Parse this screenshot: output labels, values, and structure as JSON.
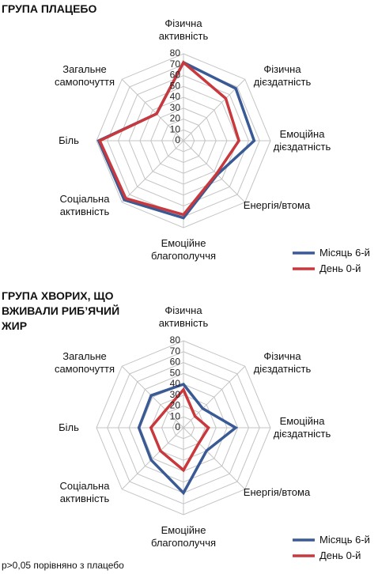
{
  "chart_data": [
    {
      "type": "radar",
      "title": "ГРУПА ПЛАЦЕБО",
      "categories": [
        "Фізична активність",
        "Фізична дієздатність",
        "Емоційна дієздатність",
        "Енергія/втома",
        "Емоційне благополуччя",
        "Соціальна активність",
        "Біль",
        "Загальне самопочуття"
      ],
      "series": [
        {
          "name": "Місяць 6-й",
          "color": "#3a5a96",
          "values": [
            72,
            68,
            65,
            44,
            71,
            77,
            78,
            35
          ]
        },
        {
          "name": "День 0-й",
          "color": "#c8383c",
          "values": [
            72,
            55,
            51,
            43,
            68,
            75,
            77,
            35
          ]
        }
      ],
      "rlim": [
        0,
        80
      ],
      "rticks": [
        0,
        10,
        20,
        30,
        40,
        50,
        60,
        70,
        80
      ],
      "grid": true,
      "legend": "bottom-right"
    },
    {
      "type": "radar",
      "title": "ГРУПА ХВОРИХ, ЩО ВЖИВАЛИ РИБ’ЯЧИЙ ЖИР",
      "categories": [
        "Фізична активність",
        "Фізична дієздатність",
        "Емоційна дієздатність",
        "Енергія/втома",
        "Емоційне благополуччя",
        "Соціальна активність",
        "Біль",
        "Загальне самопочуття"
      ],
      "series": [
        {
          "name": "Місяць 6-й",
          "color": "#3a5a96",
          "values": [
            40,
            25,
            48,
            30,
            60,
            42,
            41,
            42
          ]
        },
        {
          "name": "День 0-й",
          "color": "#c8383c",
          "values": [
            35,
            15,
            23,
            20,
            39,
            30,
            30,
            23
          ]
        }
      ],
      "rlim": [
        0,
        80
      ],
      "rticks": [
        0,
        10,
        20,
        30,
        40,
        50,
        60,
        70,
        80
      ],
      "grid": true,
      "legend": "bottom-right"
    }
  ],
  "footnote": "p>0,05 порівняно з плацебо"
}
